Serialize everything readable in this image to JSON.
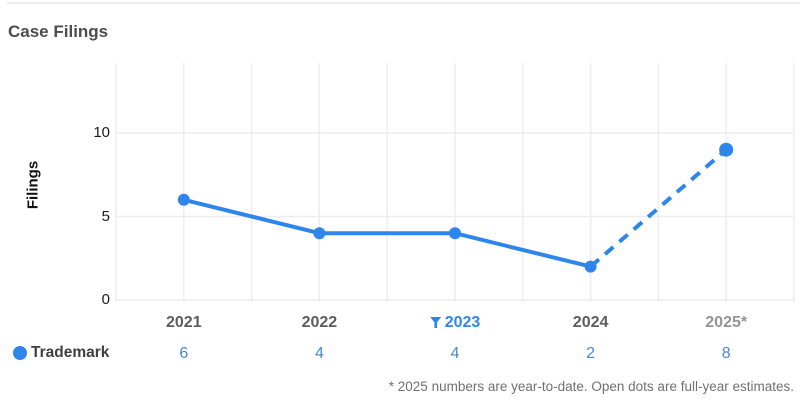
{
  "title": "Case Filings",
  "colors": {
    "accent": "#2e86eb",
    "table_value_blue": "#4486dc",
    "gridline": "#ededed"
  },
  "chart_data": {
    "type": "line",
    "title": "Case Filings",
    "xlabel": "",
    "ylabel": "Filings",
    "categories": [
      "2021",
      "2022",
      "2023",
      "2024",
      "2025*"
    ],
    "yticks": [
      0,
      5,
      10
    ],
    "ylim": [
      0,
      14
    ],
    "grid": true,
    "legend_position": "bottom-left",
    "series": [
      {
        "name": "Trademark",
        "color": "#2e86eb",
        "values": [
          6,
          4,
          4,
          2,
          9
        ],
        "dashed_from_index": 3,
        "marker": "filled-circle"
      }
    ],
    "annotations": {
      "filter_icon_on_category": "2023",
      "dashed_segment": "2024 to 2025 (full-year estimate)"
    }
  },
  "xaxis": {
    "labels": [
      "2021",
      "2022",
      "2023",
      "2024",
      "2025*"
    ]
  },
  "legend_table": {
    "series_label": "Trademark",
    "values": [
      "6",
      "4",
      "4",
      "2",
      "8"
    ]
  },
  "footnote": "* 2025 numbers are year-to-date. Open dots are full-year estimates."
}
